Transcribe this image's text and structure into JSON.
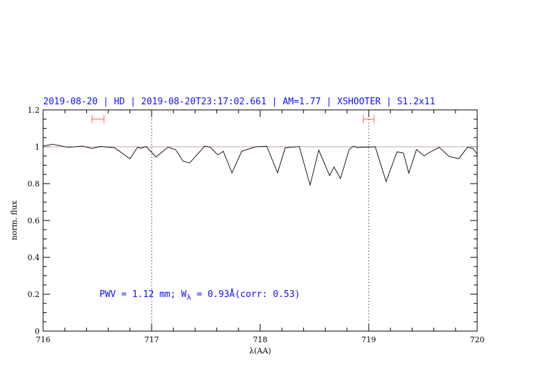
{
  "chart_data": {
    "type": "line",
    "title": "2019-08-20 | HD | 2019-08-20T23:17:02.661 | AM=1.77 | XSHOOTER | S1.2x11",
    "xlabel": "λ(AA)",
    "ylabel": "norm. flux",
    "xlim": [
      716,
      720
    ],
    "ylim": [
      0,
      1.2
    ],
    "x_ticks": [
      716,
      717,
      718,
      719,
      720
    ],
    "x_tick_labels": [
      "716",
      "717",
      "718",
      "719",
      "720"
    ],
    "y_ticks": [
      0,
      0.2,
      0.4,
      0.6,
      0.8,
      1,
      1.2
    ],
    "y_tick_labels": [
      "0",
      "0.2",
      "0.4",
      "0.6",
      "0.8",
      "1",
      "1.2"
    ],
    "grid": false,
    "reference_line": 1.0,
    "vertical_markers": [
      717,
      719
    ],
    "range_markers": [
      {
        "from": 716.45,
        "to": 716.56,
        "y": 1.15
      },
      {
        "from": 718.95,
        "to": 719.05,
        "y": 1.15
      }
    ],
    "annotation": {
      "prefix": "PWV = 1.12 mm; W",
      "subscript": "λ",
      "suffix": " = 0.93Å(corr: 0.53)"
    },
    "colors": {
      "spectrum": "#000000",
      "reference": "#b08080",
      "range_markers": "#ff6060",
      "text": "#1010ff"
    },
    "series": [
      {
        "x": [
          716.0,
          716.03,
          716.09,
          716.23,
          716.36,
          716.45,
          716.53,
          716.66,
          716.8,
          716.87,
          716.9,
          716.95,
          717.04,
          717.15,
          717.22,
          717.29,
          717.35,
          717.49,
          717.54,
          717.61,
          717.66,
          717.74,
          717.83,
          717.96,
          718.06,
          718.16,
          718.23,
          718.36,
          718.46,
          718.54,
          718.64,
          718.68,
          718.74,
          718.82,
          718.86,
          718.89,
          719.06,
          719.16,
          719.26,
          719.32,
          719.37,
          719.44,
          719.51,
          719.57,
          719.65,
          719.74,
          719.83,
          719.91,
          719.96,
          720.0
        ],
        "y": [
          1.005,
          1.007,
          1.014,
          0.997,
          1.004,
          0.991,
          1.002,
          0.994,
          0.935,
          0.997,
          0.992,
          1.001,
          0.945,
          0.997,
          0.985,
          0.922,
          0.912,
          1.004,
          0.997,
          0.956,
          0.975,
          0.859,
          0.976,
          1.0,
          1.003,
          0.859,
          0.994,
          1.001,
          0.792,
          0.982,
          0.843,
          0.89,
          0.828,
          0.985,
          1.003,
          0.996,
          1.0,
          0.811,
          0.972,
          0.966,
          0.857,
          0.985,
          0.951,
          0.972,
          0.997,
          0.948,
          0.935,
          0.997,
          0.991,
          0.96
        ]
      }
    ]
  }
}
